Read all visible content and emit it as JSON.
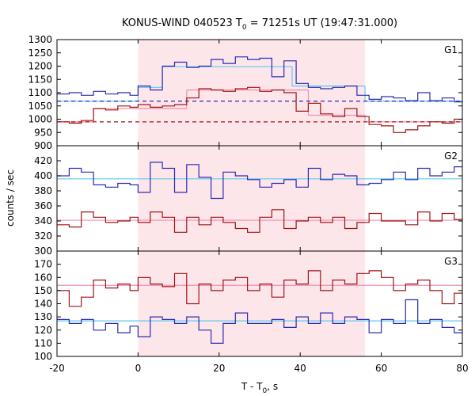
{
  "chart_data": {
    "type": "line",
    "title": "KONUS-WIND 040523 T",
    "title_sub": "0",
    "title_rest": " = 71251s UT (19:47:31.000)",
    "xlabel": "T - T",
    "xlabel_sub": "0",
    "xlabel_rest": ", s",
    "ylabel": "counts / sec",
    "xlim": [
      -20,
      80
    ],
    "x_ticks": [
      -20,
      0,
      20,
      40,
      60,
      80
    ],
    "x_tick_labels": [
      "-20",
      "0",
      "20",
      "40",
      "60",
      "80"
    ],
    "highlight_interval": [
      0,
      56
    ],
    "colors": {
      "blue": "#2b2bb0",
      "red": "#a01515",
      "cyan": "#5fc8f0",
      "pink": "#f08fb4",
      "shade": "#fde6ea"
    },
    "panels": [
      {
        "label": "G1",
        "ylim": [
          900,
          1300
        ],
        "y_ticks": [
          900,
          950,
          1000,
          1050,
          1100,
          1150,
          1200,
          1250,
          1300
        ],
        "y_tick_labels": [
          "900",
          "950",
          "1000",
          "1050",
          "1100",
          "1150",
          "1200",
          "1250",
          "1300"
        ],
        "series": [
          {
            "color": "blue",
            "edges": [
              -20,
              -17,
              -14,
              -11,
              -8,
              -5,
              -2,
              0,
              3,
              6,
              9,
              12,
              15,
              18,
              21,
              24,
              27,
              30,
              33,
              36,
              39,
              42,
              45,
              48,
              51,
              54,
              57,
              60,
              63,
              66,
              69,
              72,
              75,
              78,
              80
            ],
            "values": [
              1095,
              1100,
              1090,
              1105,
              1095,
              1100,
              1090,
              1125,
              1110,
              1200,
              1215,
              1195,
              1200,
              1225,
              1210,
              1235,
              1225,
              1230,
              1160,
              1220,
              1135,
              1120,
              1115,
              1120,
              1125,
              1090,
              1075,
              1085,
              1080,
              1070,
              1100,
              1070,
              1080,
              1065
            ]
          },
          {
            "color": "red",
            "edges": [
              -20,
              -17,
              -14,
              -11,
              -8,
              -5,
              -2,
              0,
              3,
              6,
              9,
              12,
              15,
              18,
              21,
              24,
              27,
              30,
              33,
              36,
              39,
              42,
              45,
              48,
              51,
              54,
              57,
              60,
              63,
              66,
              69,
              72,
              75,
              78,
              80
            ],
            "values": [
              990,
              985,
              995,
              1040,
              1035,
              1050,
              1045,
              1055,
              1045,
              1050,
              1055,
              1080,
              1115,
              1110,
              1105,
              1115,
              1120,
              1105,
              1110,
              1100,
              1030,
              1060,
              1020,
              1010,
              1040,
              1010,
              980,
              975,
              950,
              960,
              975,
              990,
              985,
              1000
            ]
          }
        ],
        "fits": [
          {
            "color": "cyan",
            "dashed": false,
            "segments": [
              [
                -20,
                1068,
                0,
                1068
              ],
              [
                0,
                1120,
                6,
                1120
              ],
              [
                6,
                1198,
                38,
                1198
              ],
              [
                38,
                1125,
                56,
                1125
              ],
              [
                56,
                1068,
                80,
                1068
              ]
            ]
          },
          {
            "color": "pink",
            "dashed": false,
            "segments": [
              [
                -20,
                990,
                -11,
                990
              ],
              [
                -11,
                1040,
                12,
                1040
              ],
              [
                12,
                1110,
                42,
                1110
              ],
              [
                42,
                1015,
                56,
                1015
              ],
              [
                56,
                990,
                80,
                990
              ]
            ]
          },
          {
            "color": "blue",
            "dashed": true,
            "segments": [
              [
                -20,
                1068,
                80,
                1068
              ]
            ]
          },
          {
            "color": "red",
            "dashed": true,
            "segments": [
              [
                -20,
                990,
                80,
                990
              ]
            ]
          }
        ]
      },
      {
        "label": "G2",
        "ylim": [
          300,
          440
        ],
        "y_ticks": [
          300,
          320,
          340,
          360,
          380,
          400,
          420
        ],
        "y_tick_labels": [
          "300",
          "320",
          "340",
          "360",
          "380",
          "400",
          "420"
        ],
        "series": [
          {
            "color": "blue",
            "edges": [
              -20,
              -17,
              -14,
              -11,
              -8,
              -5,
              -2,
              0,
              3,
              6,
              9,
              12,
              15,
              18,
              21,
              24,
              27,
              30,
              33,
              36,
              39,
              42,
              45,
              48,
              51,
              54,
              57,
              60,
              63,
              66,
              69,
              72,
              75,
              78,
              80
            ],
            "values": [
              400,
              410,
              405,
              388,
              385,
              390,
              388,
              378,
              418,
              410,
              378,
              415,
              398,
              370,
              405,
              400,
              395,
              385,
              390,
              395,
              385,
              410,
              395,
              402,
              400,
              388,
              390,
              395,
              405,
              395,
              410,
              400,
              405,
              412
            ]
          },
          {
            "color": "red",
            "edges": [
              -20,
              -17,
              -14,
              -11,
              -8,
              -5,
              -2,
              0,
              3,
              6,
              9,
              12,
              15,
              18,
              21,
              24,
              27,
              30,
              33,
              36,
              39,
              42,
              45,
              48,
              51,
              54,
              57,
              60,
              63,
              66,
              69,
              72,
              75,
              78,
              80
            ],
            "values": [
              335,
              332,
              352,
              345,
              338,
              340,
              345,
              338,
              352,
              345,
              325,
              345,
              335,
              345,
              338,
              330,
              325,
              345,
              355,
              330,
              340,
              345,
              338,
              345,
              330,
              338,
              350,
              340,
              340,
              335,
              352,
              340,
              350,
              342
            ]
          }
        ],
        "fits": [
          {
            "color": "cyan",
            "dashed": false,
            "segments": [
              [
                -20,
                396,
                80,
                396
              ]
            ]
          },
          {
            "color": "pink",
            "dashed": false,
            "segments": [
              [
                -20,
                341,
                80,
                341
              ]
            ]
          }
        ]
      },
      {
        "label": "G3",
        "ylim": [
          100,
          180
        ],
        "y_ticks": [
          100,
          110,
          120,
          130,
          140,
          150,
          160,
          170
        ],
        "y_tick_labels": [
          "100",
          "110",
          "120",
          "130",
          "140",
          "150",
          "160",
          "170"
        ],
        "series": [
          {
            "color": "red",
            "edges": [
              -20,
              -17,
              -14,
              -11,
              -8,
              -5,
              -2,
              0,
              3,
              6,
              9,
              12,
              15,
              18,
              21,
              24,
              27,
              30,
              33,
              36,
              39,
              42,
              45,
              48,
              51,
              54,
              57,
              60,
              63,
              66,
              69,
              72,
              75,
              78,
              80
            ],
            "values": [
              150,
              138,
              145,
              158,
              152,
              155,
              150,
              160,
              155,
              153,
              163,
              140,
              155,
              150,
              158,
              160,
              150,
              155,
              145,
              158,
              155,
              165,
              150,
              158,
              155,
              163,
              165,
              160,
              150,
              155,
              158,
              150,
              140,
              148
            ]
          },
          {
            "color": "blue",
            "edges": [
              -20,
              -17,
              -14,
              -11,
              -8,
              -5,
              -2,
              0,
              3,
              6,
              9,
              12,
              15,
              18,
              21,
              24,
              27,
              30,
              33,
              36,
              39,
              42,
              45,
              48,
              51,
              54,
              57,
              60,
              63,
              66,
              69,
              72,
              75,
              78,
              80
            ],
            "values": [
              128,
              125,
              128,
              120,
              125,
              118,
              123,
              115,
              130,
              128,
              125,
              130,
              120,
              110,
              125,
              133,
              125,
              125,
              128,
              122,
              130,
              125,
              133,
              125,
              130,
              128,
              118,
              128,
              125,
              143,
              125,
              128,
              122,
              118
            ]
          }
        ],
        "fits": [
          {
            "color": "cyan",
            "dashed": false,
            "segments": [
              [
                -20,
                127,
                80,
                127
              ]
            ]
          },
          {
            "color": "pink",
            "dashed": false,
            "segments": [
              [
                -20,
                154,
                80,
                154
              ]
            ]
          }
        ]
      }
    ]
  }
}
